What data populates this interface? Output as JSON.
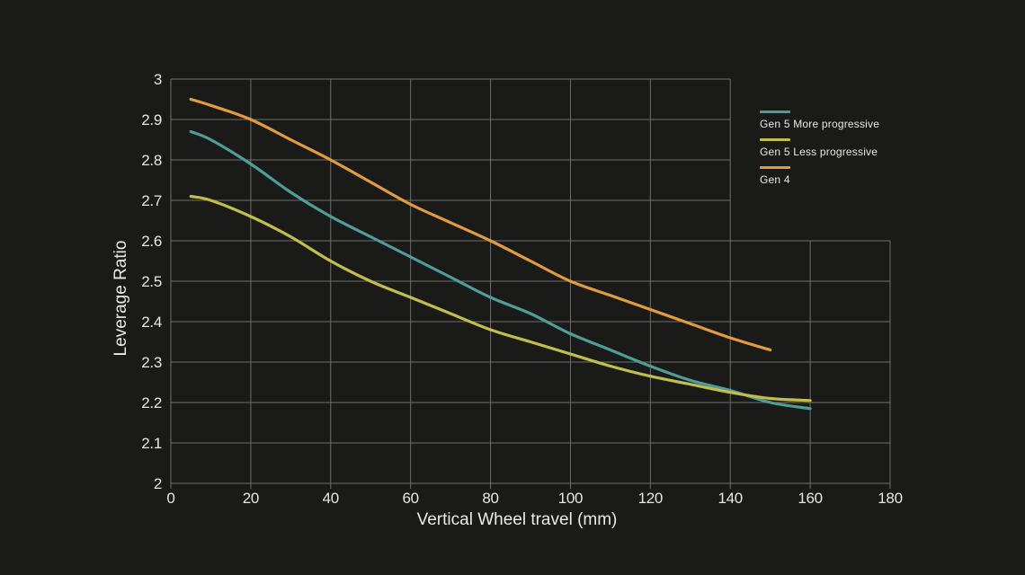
{
  "colors": {
    "background": "#1a1a18",
    "grid": "#6d6d69",
    "text": "#e9e7e4",
    "teal": "#4f9d99",
    "olive": "#c1be4b",
    "orange": "#e09c3e"
  },
  "chart_data": {
    "type": "line",
    "title": "",
    "xlabel": "Vertical Wheel travel (mm)",
    "ylabel": "Leverage Ratio",
    "xlim": [
      0,
      180
    ],
    "ylim": [
      2,
      3
    ],
    "xticks": [
      "0",
      "20",
      "40",
      "60",
      "80",
      "100",
      "120",
      "140",
      "160",
      "180"
    ],
    "yticks": [
      "2",
      "2.1",
      "2.2",
      "2.3",
      "2.4",
      "2.5",
      "2.6",
      "2.7",
      "2.8",
      "2.9",
      "3"
    ],
    "grid": true,
    "legend_position": "inside-top-right",
    "series": [
      {
        "name": "Gen 5 More progressive",
        "color": "#4f9d99",
        "x": [
          5,
          10,
          20,
          30,
          40,
          50,
          60,
          70,
          80,
          90,
          100,
          110,
          120,
          130,
          140,
          150,
          160
        ],
        "y": [
          2.87,
          2.85,
          2.79,
          2.72,
          2.66,
          2.61,
          2.56,
          2.51,
          2.46,
          2.42,
          2.37,
          2.33,
          2.29,
          2.255,
          2.23,
          2.2,
          2.185
        ]
      },
      {
        "name": "Gen 5 Less progressive",
        "color": "#c1be4b",
        "x": [
          5,
          10,
          20,
          30,
          40,
          50,
          60,
          70,
          80,
          90,
          100,
          110,
          120,
          130,
          140,
          150,
          160
        ],
        "y": [
          2.71,
          2.7,
          2.66,
          2.61,
          2.55,
          2.5,
          2.46,
          2.42,
          2.38,
          2.35,
          2.32,
          2.29,
          2.265,
          2.245,
          2.225,
          2.21,
          2.205
        ]
      },
      {
        "name": "Gen 4",
        "color": "#e09c3e",
        "x": [
          5,
          10,
          20,
          30,
          40,
          50,
          60,
          70,
          80,
          90,
          100,
          110,
          120,
          130,
          140,
          150
        ],
        "y": [
          2.95,
          2.935,
          2.9,
          2.85,
          2.8,
          2.745,
          2.69,
          2.645,
          2.6,
          2.55,
          2.5,
          2.465,
          2.43,
          2.395,
          2.36,
          2.33
        ]
      }
    ]
  }
}
